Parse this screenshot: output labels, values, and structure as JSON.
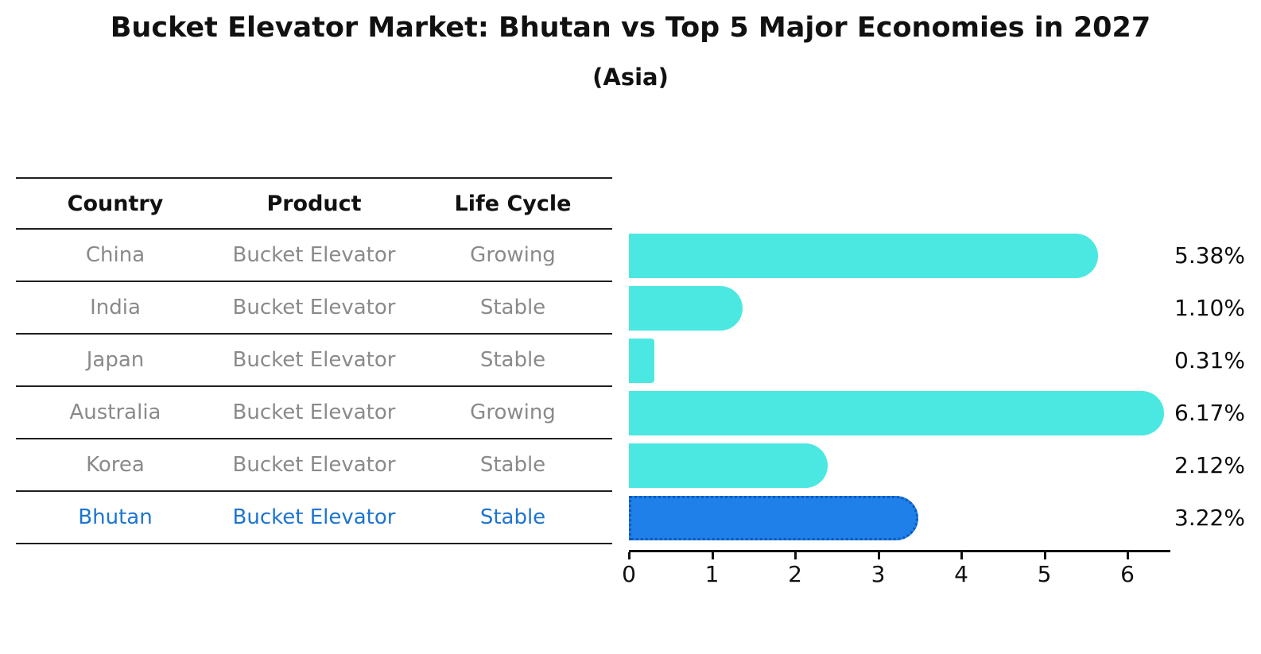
{
  "title": "Bucket Elevator Market: Bhutan vs Top 5 Major Economies in 2027",
  "subtitle": "(Asia)",
  "table": {
    "headers": [
      "Country",
      "Product",
      "Life Cycle"
    ],
    "rows": [
      {
        "country": "China",
        "product": "Bucket Elevator",
        "life_cycle": "Growing",
        "highlight": false
      },
      {
        "country": "India",
        "product": "Bucket Elevator",
        "life_cycle": "Stable",
        "highlight": false
      },
      {
        "country": "Japan",
        "product": "Bucket Elevator",
        "life_cycle": "Stable",
        "highlight": false
      },
      {
        "country": "Australia",
        "product": "Bucket Elevator",
        "life_cycle": "Growing",
        "highlight": false
      },
      {
        "country": "Korea",
        "product": "Bucket Elevator",
        "life_cycle": "Stable",
        "highlight": false
      },
      {
        "country": "Bhutan",
        "product": "Bucket Elevator",
        "life_cycle": "Stable",
        "highlight": true
      }
    ]
  },
  "chart_data": {
    "type": "bar",
    "orientation": "horizontal",
    "title": "Bucket Elevator Market: Bhutan vs Top 5 Major Economies in 2027",
    "subtitle": "(Asia)",
    "categories": [
      "China",
      "India",
      "Japan",
      "Australia",
      "Korea",
      "Bhutan"
    ],
    "values": [
      5.38,
      1.1,
      0.31,
      6.17,
      2.12,
      3.22
    ],
    "bar_labels": [
      "5.38%",
      "1.10%",
      "0.31%",
      "6.17%",
      "2.12%",
      "3.22%"
    ],
    "xlim": [
      0,
      6.5
    ],
    "xticks": [
      "0",
      "1",
      "2",
      "3",
      "4",
      "5",
      "6"
    ],
    "grid": false,
    "legend": false,
    "highlight_index": 5,
    "colors": {
      "bar": "#4ae8e1",
      "highlight_bar": "#1e80e8",
      "highlight_border": "#0e59bc",
      "highlight_text": "#1d74d0",
      "row_text": "#8a8a8a",
      "header_text": "#111111",
      "axis": "#111111"
    }
  }
}
